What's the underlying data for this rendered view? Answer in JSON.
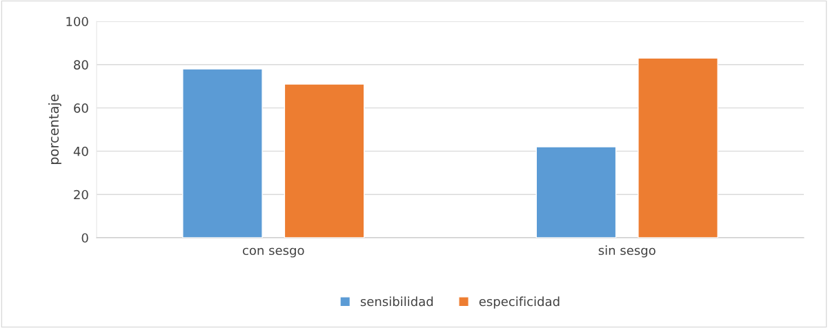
{
  "chart_data": {
    "type": "bar",
    "ylabel": "porcentaje",
    "categories": [
      "con sesgo",
      "sin sesgo"
    ],
    "series": [
      {
        "name": "sensibilidad",
        "color": "#5b9bd5",
        "values": [
          78,
          42
        ]
      },
      {
        "name": "especificidad",
        "color": "#ed7d31",
        "values": [
          71,
          83
        ]
      }
    ],
    "ylim": [
      0,
      100
    ],
    "yticks": [
      0,
      20,
      40,
      60,
      80,
      100
    ],
    "grid": "y",
    "legend": "bottom"
  }
}
